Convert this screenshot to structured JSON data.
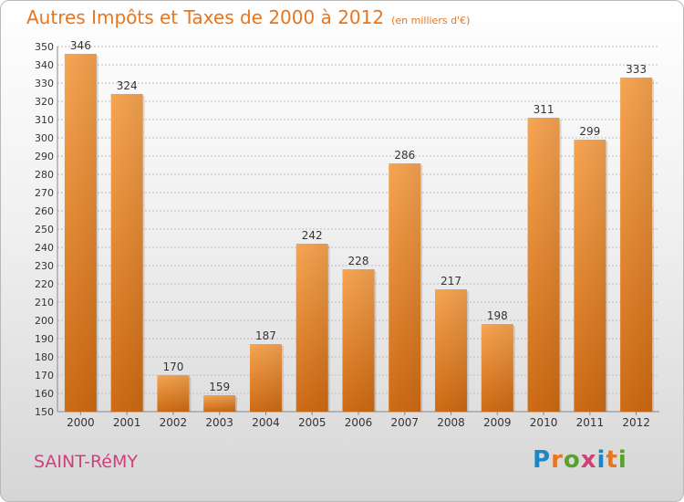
{
  "title": "Autres Impôts et Taxes de 2000 à 2012",
  "unit": "(en milliers d'€)",
  "commune": "SAINT-RéMY",
  "logo": {
    "letters": [
      "P",
      "r",
      "o",
      "x",
      "i",
      "t",
      "i"
    ],
    "colors": [
      "#1f86c6",
      "#e8761f",
      "#5aa02c",
      "#d0407a",
      "#1f86c6",
      "#e8761f",
      "#5aa02c"
    ]
  },
  "colors": {
    "bar": "#f0902f",
    "bar_dark": "#d2701a",
    "title": "#e8761f",
    "commune": "#d0407a"
  },
  "chart_data": {
    "type": "bar",
    "title": "Autres Impôts et Taxes de 2000 à 2012",
    "ylabel": "",
    "xlabel": "",
    "ylim": [
      150,
      350
    ],
    "ytick_step": 10,
    "grid": true,
    "categories": [
      "2000",
      "2001",
      "2002",
      "2003",
      "2004",
      "2005",
      "2006",
      "2007",
      "2008",
      "2009",
      "2010",
      "2011",
      "2012"
    ],
    "values": [
      346,
      324,
      170,
      159,
      187,
      242,
      228,
      286,
      217,
      198,
      311,
      299,
      333
    ]
  }
}
